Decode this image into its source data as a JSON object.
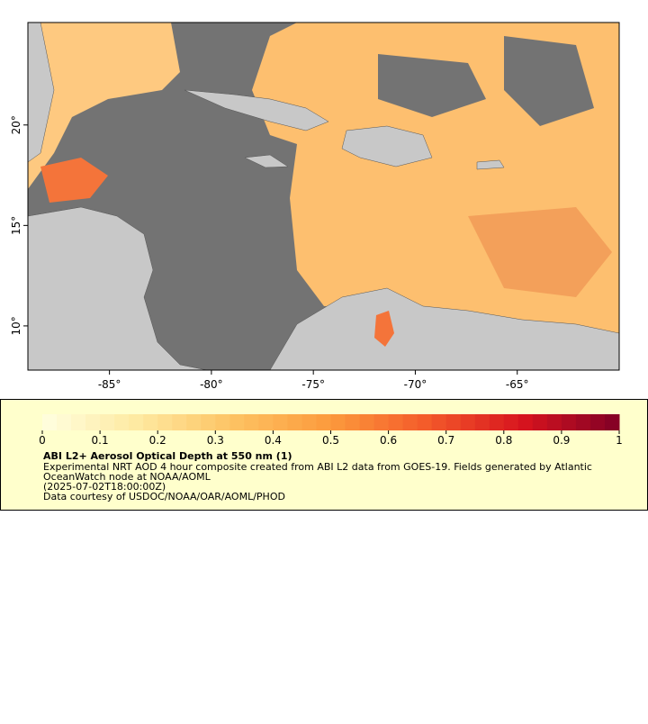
{
  "map": {
    "xlim": [
      -89,
      -60
    ],
    "ylim": [
      7.8,
      25.1
    ],
    "xticks": [
      {
        "value": -85,
        "label": "-85°"
      },
      {
        "value": -80,
        "label": "-80°"
      },
      {
        "value": -75,
        "label": "-75°"
      },
      {
        "value": -70,
        "label": "-70°"
      },
      {
        "value": -65,
        "label": "-65°"
      }
    ],
    "yticks": [
      {
        "value": 10,
        "label": "10°"
      },
      {
        "value": 15,
        "label": "15°"
      },
      {
        "value": 20,
        "label": "20°"
      }
    ]
  },
  "colorbar": {
    "lim": [
      0,
      1
    ],
    "ticks": [
      0,
      0.1,
      0.2,
      0.3,
      0.4,
      0.5,
      0.6,
      0.7,
      0.8,
      0.9,
      1
    ],
    "colors": [
      "#ffffe0",
      "#fee9a0",
      "#fdc262",
      "#fc9a3c",
      "#f45a2a",
      "#d7141e",
      "#800026"
    ]
  },
  "legend": {
    "title": "ABI L2+ Aerosol Optical Depth at 550 nm (1)",
    "description_line1": "Experimental NRT AOD 4 hour composite created from ABI L2 data from GOES-19. Fields generated by Atlantic",
    "description_line2": "OceanWatch node at NOAA/AOML",
    "time": "(2025-07-02T18:00:00Z)",
    "credit": "Data courtesy of USDOC/NOAA/OAR/AOML/PHOD"
  }
}
